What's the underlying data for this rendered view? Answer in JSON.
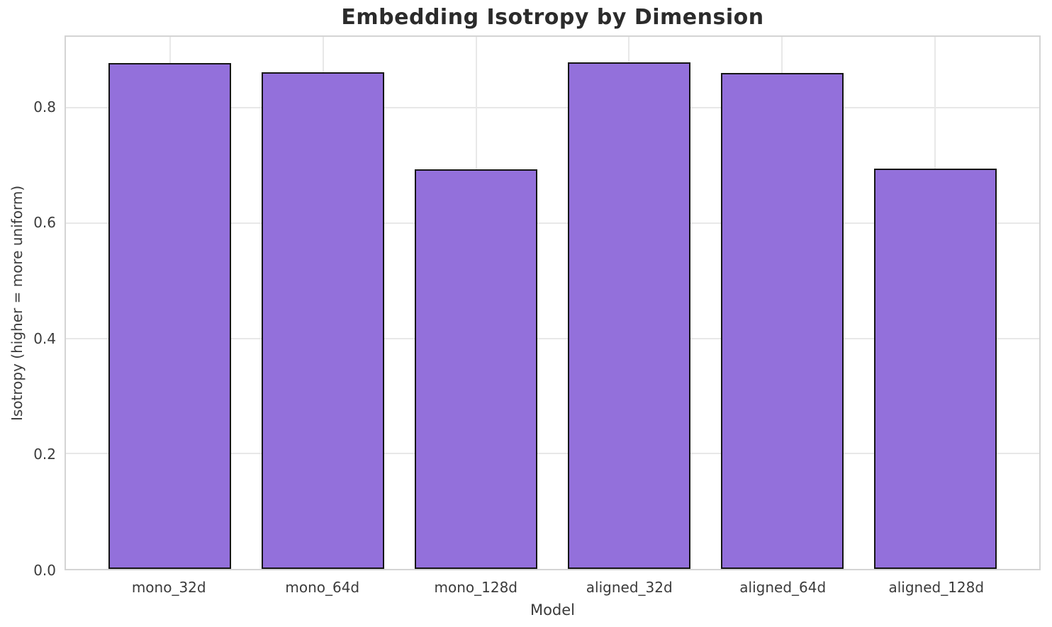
{
  "colors": {
    "title_color": "#2b2b2b",
    "tick_color": "#3b3b3b",
    "spine_color": "#d4d4d4",
    "grid_color": "#e8e8e8",
    "bar_color": "#9370DB",
    "bar_edge_color": "#151515",
    "background": "#ffffff"
  },
  "chart_data": {
    "type": "bar",
    "title": "Embedding Isotropy by Dimension",
    "xlabel": "Model",
    "ylabel": "Isotropy (higher = more uniform)",
    "categories": [
      "mono_32d",
      "mono_64d",
      "mono_128d",
      "aligned_32d",
      "aligned_64d",
      "aligned_128d"
    ],
    "values": [
      0.878,
      0.861,
      0.693,
      0.879,
      0.86,
      0.694
    ],
    "yticks": [
      0.0,
      0.2,
      0.4,
      0.6,
      0.8
    ],
    "ytick_labels": [
      "0.0",
      "0.2",
      "0.4",
      "0.6",
      "0.8"
    ],
    "ylim": [
      0,
      0.923
    ],
    "grid": true,
    "legend": "none",
    "bar_width": 0.8,
    "x_margin": 0.68
  }
}
